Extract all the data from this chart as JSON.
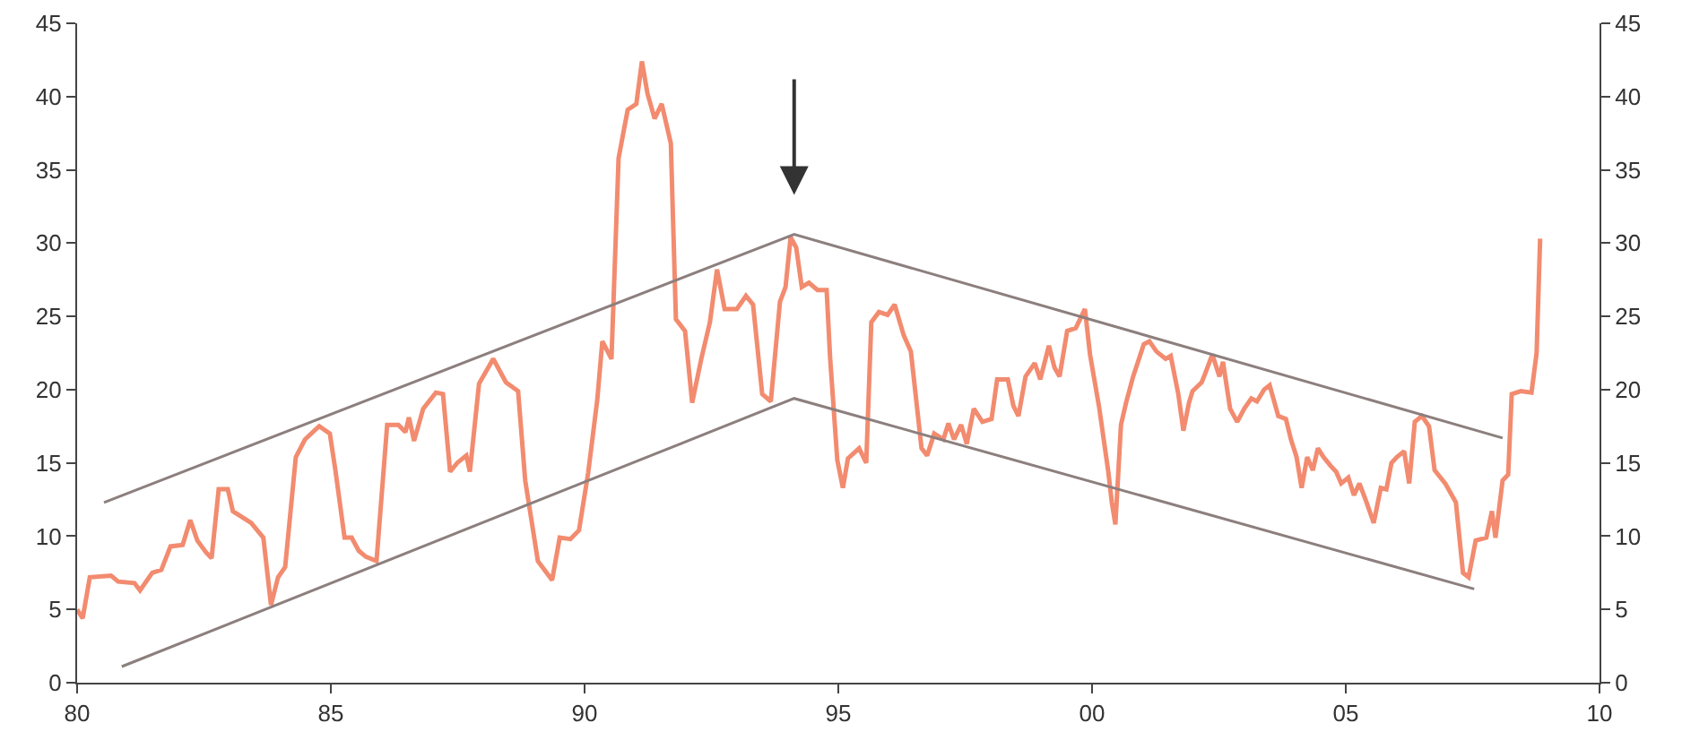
{
  "chart_data": {
    "type": "line",
    "series": [
      {
        "color": "#f28b6f",
        "x": [
          1980.0,
          1980.11,
          1980.25,
          1980.67,
          1980.81,
          1981.13,
          1981.24,
          1981.48,
          1981.66,
          1981.84,
          1982.08,
          1982.23,
          1982.37,
          1982.54,
          1982.65,
          1982.79,
          1982.97,
          1983.07,
          1983.43,
          1983.67,
          1983.82,
          1983.96,
          1984.1,
          1984.31,
          1984.49,
          1984.77,
          1984.98,
          1985.09,
          1985.27,
          1985.41,
          1985.55,
          1985.69,
          1985.9,
          1986.11,
          1986.33,
          1986.47,
          1986.54,
          1986.64,
          1986.82,
          1987.07,
          1987.21,
          1987.35,
          1987.49,
          1987.67,
          1987.74,
          1987.92,
          1988.2,
          1988.45,
          1988.69,
          1988.83,
          1989.08,
          1989.36,
          1989.51,
          1989.72,
          1989.89,
          1990.07,
          1990.25,
          1990.35,
          1990.53,
          1990.67,
          1990.85,
          1991.02,
          1991.13,
          1991.24,
          1991.38,
          1991.52,
          1991.7,
          1991.8,
          1991.98,
          1992.12,
          1992.3,
          1992.47,
          1992.61,
          1992.76,
          1993.0,
          1993.18,
          1993.32,
          1993.5,
          1993.67,
          1993.85,
          1993.96,
          1994.06,
          1994.17,
          1994.28,
          1994.42,
          1994.59,
          1994.77,
          1994.84,
          1994.98,
          1995.09,
          1995.19,
          1995.41,
          1995.55,
          1995.65,
          1995.8,
          1995.97,
          1996.11,
          1996.29,
          1996.43,
          1996.64,
          1996.75,
          1996.89,
          1997.07,
          1997.17,
          1997.28,
          1997.42,
          1997.53,
          1997.67,
          1997.84,
          1998.02,
          1998.13,
          1998.34,
          1998.45,
          1998.55,
          1998.69,
          1998.87,
          1998.98,
          1999.15,
          1999.26,
          1999.36,
          1999.51,
          1999.68,
          1999.86,
          1999.96,
          2000.14,
          2000.32,
          2000.39,
          2000.46,
          2000.57,
          2000.67,
          2000.81,
          2001.02,
          2001.13,
          2001.27,
          2001.45,
          2001.55,
          2001.7,
          2001.8,
          2001.91,
          2001.98,
          2002.16,
          2002.23,
          2002.37,
          2002.51,
          2002.58,
          2002.72,
          2002.86,
          2003.0,
          2003.14,
          2003.25,
          2003.39,
          2003.5,
          2003.67,
          2003.82,
          2003.92,
          2004.03,
          2004.13,
          2004.24,
          2004.35,
          2004.45,
          2004.56,
          2004.7,
          2004.81,
          2004.91,
          2005.05,
          2005.16,
          2005.27,
          2005.41,
          2005.55,
          2005.69,
          2005.8,
          2005.9,
          2006.01,
          2006.15,
          2006.25,
          2006.36,
          2006.5,
          2006.64,
          2006.75,
          2006.96,
          2007.17,
          2007.31,
          2007.42,
          2007.56,
          2007.77,
          2007.88,
          2007.95,
          2008.09,
          2008.2,
          2008.27,
          2008.45,
          2008.66,
          2008.76,
          2008.83
        ],
        "values": [
          5.0,
          4.4,
          7.2,
          7.3,
          6.9,
          6.8,
          6.3,
          7.5,
          7.7,
          9.3,
          9.4,
          11.1,
          9.7,
          8.9,
          8.5,
          13.2,
          13.2,
          11.7,
          10.9,
          9.9,
          5.3,
          7.2,
          7.9,
          15.4,
          16.6,
          17.5,
          17.0,
          14.5,
          9.9,
          9.9,
          9.0,
          8.6,
          8.3,
          17.6,
          17.6,
          17.1,
          18.1,
          16.5,
          18.7,
          19.8,
          19.7,
          14.4,
          15.0,
          15.5,
          14.4,
          20.4,
          22.1,
          20.5,
          19.9,
          13.8,
          8.3,
          7.0,
          9.9,
          9.8,
          10.4,
          14.3,
          19.3,
          23.3,
          22.1,
          35.8,
          39.1,
          39.5,
          42.4,
          40.2,
          38.5,
          39.5,
          36.8,
          24.8,
          24.0,
          19.1,
          22.1,
          24.6,
          28.2,
          25.5,
          25.5,
          26.4,
          25.8,
          19.7,
          19.2,
          26.0,
          27.0,
          30.4,
          29.7,
          27.0,
          27.3,
          26.8,
          26.8,
          22.1,
          15.2,
          13.3,
          15.3,
          16.0,
          15.0,
          24.6,
          25.3,
          25.1,
          25.8,
          23.7,
          22.6,
          16.0,
          15.5,
          17.0,
          16.6,
          17.7,
          16.6,
          17.6,
          16.3,
          18.7,
          17.8,
          18.0,
          20.7,
          20.7,
          18.9,
          18.2,
          20.9,
          21.8,
          20.7,
          23.0,
          21.5,
          20.9,
          24.0,
          24.2,
          25.5,
          22.4,
          18.8,
          14.4,
          12.3,
          10.8,
          17.6,
          19.1,
          20.9,
          23.1,
          23.3,
          22.6,
          22.1,
          22.3,
          19.7,
          17.2,
          19.1,
          19.9,
          20.5,
          21.1,
          22.4,
          20.9,
          21.9,
          18.7,
          17.8,
          18.7,
          19.4,
          19.2,
          20.0,
          20.3,
          18.2,
          18.0,
          16.6,
          15.4,
          13.3,
          15.4,
          14.5,
          16.0,
          15.4,
          14.8,
          14.4,
          13.6,
          14.0,
          12.8,
          13.6,
          12.3,
          10.9,
          13.3,
          13.2,
          15.0,
          15.4,
          15.8,
          13.6,
          17.8,
          18.2,
          17.5,
          14.5,
          13.6,
          12.3,
          7.5,
          7.2,
          9.7,
          9.9,
          11.7,
          9.9,
          13.8,
          14.2,
          19.7,
          19.9,
          19.8,
          22.5,
          30.3
        ]
      },
      {
        "type": "line",
        "color": "#8c7f7e",
        "x": [
          1980.53,
          1994.13,
          2008.09
        ],
        "values": [
          12.3,
          30.6,
          16.7
        ]
      },
      {
        "type": "line",
        "color": "#8c7f7e",
        "x": [
          1980.88,
          1994.13,
          2007.53
        ],
        "values": [
          1.1,
          19.4,
          6.4
        ]
      }
    ],
    "xlim": [
      1980,
      2010
    ],
    "xticks": [
      {
        "value": 1980,
        "label": "80"
      },
      {
        "value": 1985,
        "label": "85"
      },
      {
        "value": 1990,
        "label": "90"
      },
      {
        "value": 1995,
        "label": "95"
      },
      {
        "value": 2000,
        "label": "00"
      },
      {
        "value": 2005,
        "label": "05"
      },
      {
        "value": 2010,
        "label": "10"
      }
    ],
    "ylim": [
      0,
      45
    ],
    "yticks": [
      0,
      5,
      10,
      15,
      20,
      25,
      30,
      35,
      40,
      45
    ],
    "y2lim": [
      0,
      45
    ],
    "y2ticks": [
      0,
      5,
      10,
      15,
      20,
      25,
      30,
      35,
      40,
      45
    ],
    "grid": false,
    "marker": "none",
    "line_style": "solid"
  }
}
